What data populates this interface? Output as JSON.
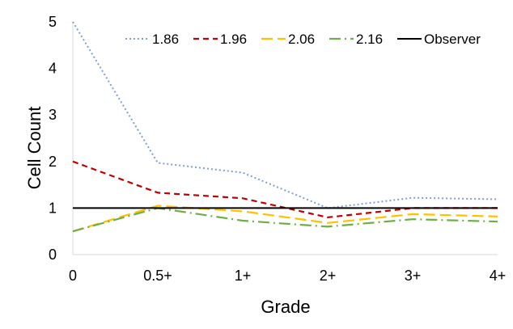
{
  "chart_data": {
    "type": "line",
    "title": "",
    "xlabel": "Grade",
    "ylabel": "Cell Count",
    "categories": [
      "0",
      "0.5+",
      "1+",
      "2+",
      "3+",
      "4+"
    ],
    "ylim": [
      0,
      5
    ],
    "yticks": [
      "0",
      "1",
      "2",
      "3",
      "4",
      "5"
    ],
    "grid": false,
    "legend_position": "top",
    "series": [
      {
        "name": "1.86",
        "values": [
          5.0,
          1.97,
          1.76,
          1.0,
          1.22,
          1.19
        ],
        "color": "#7f9fd4",
        "style": "dotted"
      },
      {
        "name": "1.96",
        "values": [
          2.0,
          1.33,
          1.21,
          0.8,
          1.0,
          1.0
        ],
        "color": "#c00000",
        "style": "dashed"
      },
      {
        "name": "2.06",
        "values": [
          0.5,
          1.05,
          0.93,
          0.68,
          0.87,
          0.82
        ],
        "color": "#ffc000",
        "style": "long-dash"
      },
      {
        "name": "2.16",
        "values": [
          0.5,
          1.0,
          0.73,
          0.6,
          0.76,
          0.71
        ],
        "color": "#70ad47",
        "style": "dash-dot"
      },
      {
        "name": "Observer",
        "values": [
          1,
          1,
          1,
          1,
          1,
          1
        ],
        "color": "#000000",
        "style": "solid"
      }
    ]
  }
}
